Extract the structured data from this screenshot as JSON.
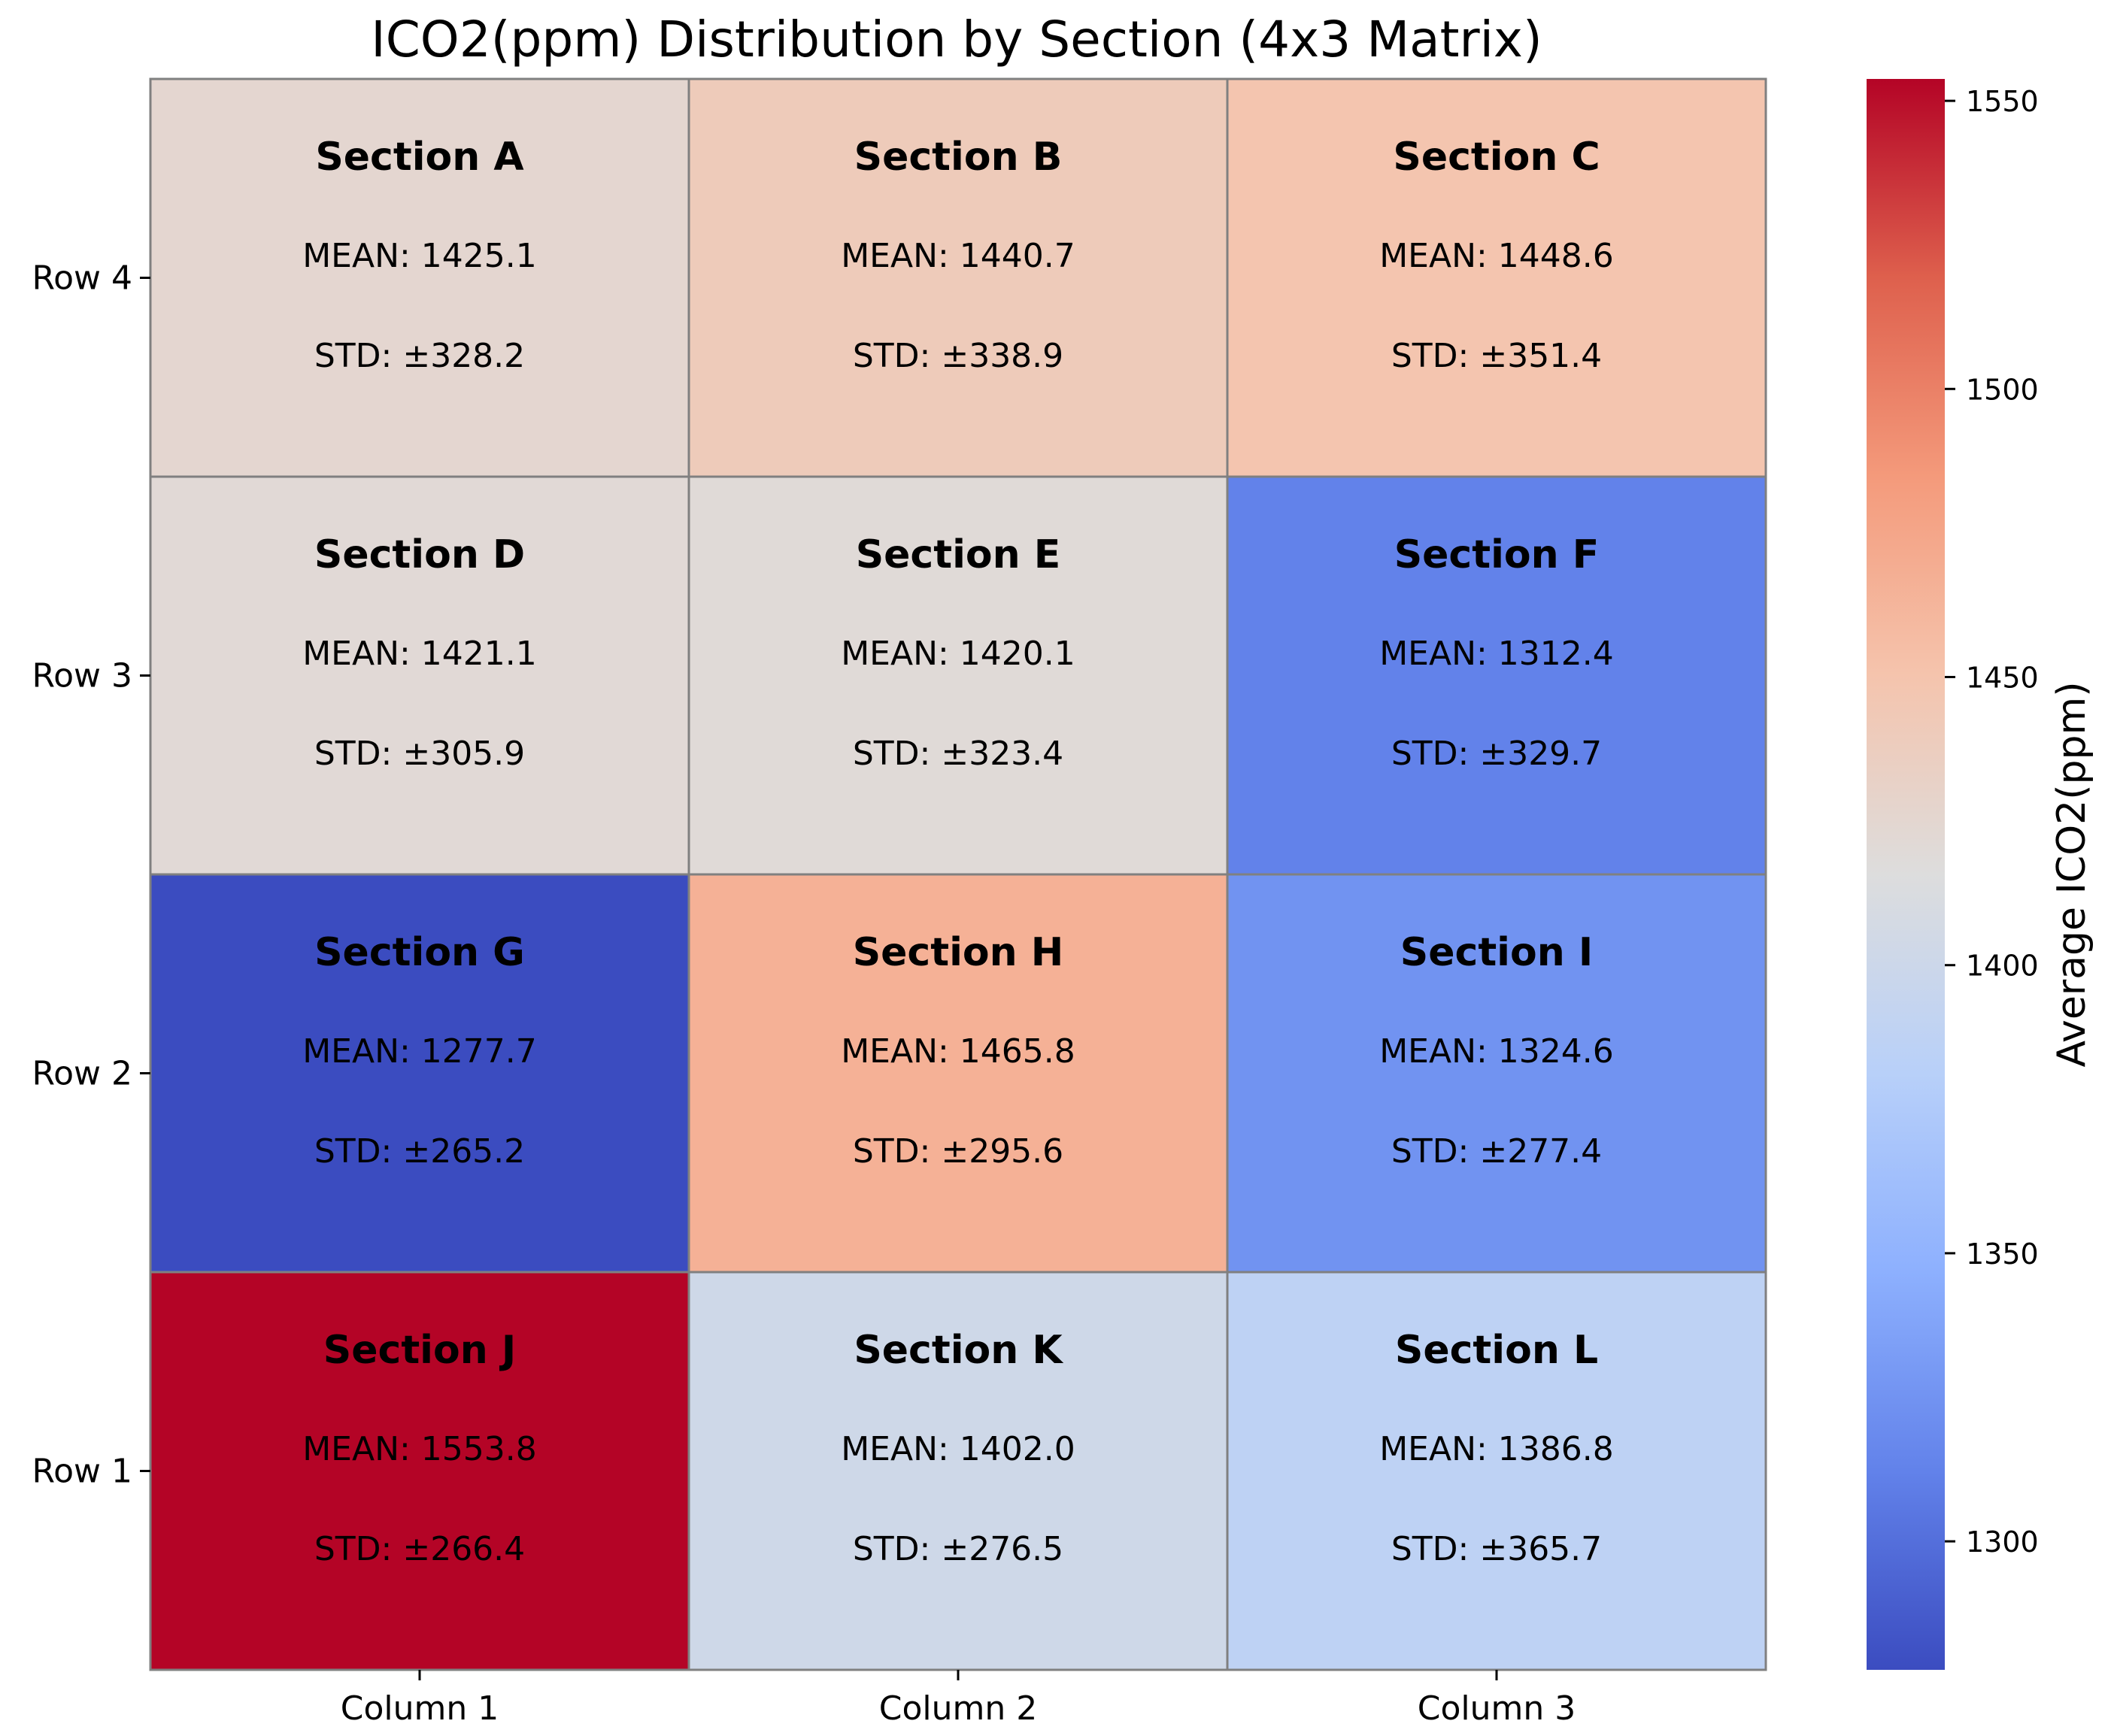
{
  "chart_data": {
    "type": "heatmap",
    "title": "ICO2(ppm) Distribution by Section (4x3 Matrix)",
    "columns": [
      "Column 1",
      "Column 2",
      "Column 3"
    ],
    "rows": [
      "Row 4",
      "Row 3",
      "Row 2",
      "Row 1"
    ],
    "cells": [
      {
        "row": "Row 4",
        "column": "Column 1",
        "section": "Section A",
        "mean": 1425.1,
        "std": 328.2,
        "mean_label": "MEAN: 1425.1",
        "std_label": "STD: ±328.2"
      },
      {
        "row": "Row 4",
        "column": "Column 2",
        "section": "Section B",
        "mean": 1440.7,
        "std": 338.9,
        "mean_label": "MEAN: 1440.7",
        "std_label": "STD: ±338.9"
      },
      {
        "row": "Row 4",
        "column": "Column 3",
        "section": "Section C",
        "mean": 1448.6,
        "std": 351.4,
        "mean_label": "MEAN: 1448.6",
        "std_label": "STD: ±351.4"
      },
      {
        "row": "Row 3",
        "column": "Column 1",
        "section": "Section D",
        "mean": 1421.1,
        "std": 305.9,
        "mean_label": "MEAN: 1421.1",
        "std_label": "STD: ±305.9"
      },
      {
        "row": "Row 3",
        "column": "Column 2",
        "section": "Section E",
        "mean": 1420.1,
        "std": 323.4,
        "mean_label": "MEAN: 1420.1",
        "std_label": "STD: ±323.4"
      },
      {
        "row": "Row 3",
        "column": "Column 3",
        "section": "Section F",
        "mean": 1312.4,
        "std": 329.7,
        "mean_label": "MEAN: 1312.4",
        "std_label": "STD: ±329.7"
      },
      {
        "row": "Row 2",
        "column": "Column 1",
        "section": "Section G",
        "mean": 1277.7,
        "std": 265.2,
        "mean_label": "MEAN: 1277.7",
        "std_label": "STD: ±265.2"
      },
      {
        "row": "Row 2",
        "column": "Column 2",
        "section": "Section H",
        "mean": 1465.8,
        "std": 295.6,
        "mean_label": "MEAN: 1465.8",
        "std_label": "STD: ±295.6"
      },
      {
        "row": "Row 2",
        "column": "Column 3",
        "section": "Section I",
        "mean": 1324.6,
        "std": 277.4,
        "mean_label": "MEAN: 1324.6",
        "std_label": "STD: ±277.4"
      },
      {
        "row": "Row 1",
        "column": "Column 1",
        "section": "Section J",
        "mean": 1553.8,
        "std": 266.4,
        "mean_label": "MEAN: 1553.8",
        "std_label": "STD: ±266.4"
      },
      {
        "row": "Row 1",
        "column": "Column 2",
        "section": "Section K",
        "mean": 1402.0,
        "std": 276.5,
        "mean_label": "MEAN: 1402.0",
        "std_label": "STD: ±276.5"
      },
      {
        "row": "Row 1",
        "column": "Column 3",
        "section": "Section L",
        "mean": 1386.8,
        "std": 365.7,
        "mean_label": "MEAN: 1386.8",
        "std_label": "STD: ±365.7"
      }
    ],
    "colorbar": {
      "label": "Average ICO2(ppm)",
      "colormap": "coolwarm",
      "range": [
        1277.7,
        1553.8
      ],
      "ticks": [
        1300,
        1350,
        1400,
        1450,
        1500,
        1550
      ]
    },
    "grid": false,
    "cell_border_color": "#808080"
  }
}
